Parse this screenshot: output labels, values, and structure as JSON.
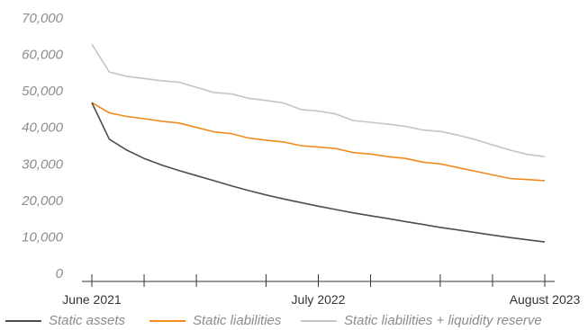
{
  "chart_data": {
    "type": "line",
    "title": "",
    "xlabel": "",
    "ylabel": "",
    "ylim": [
      0,
      70000
    ],
    "yticks": [
      "0",
      "10,000",
      "20,000",
      "30,000",
      "40,000",
      "50,000",
      "60,000",
      "70,000"
    ],
    "ytick_values": [
      0,
      10000,
      20000,
      30000,
      40000,
      50000,
      60000,
      70000
    ],
    "x_count": 27,
    "x_tick_labels": [
      {
        "index": 0,
        "label": "June 2021"
      },
      {
        "index": 13,
        "label": "July 2022"
      },
      {
        "index": 26,
        "label": "August 2023"
      }
    ],
    "x_minor_ticks": [
      0,
      3,
      6,
      10,
      13,
      16,
      20,
      23,
      26
    ],
    "grid": false,
    "legend_position": "bottom",
    "series": [
      {
        "name": "Static assets",
        "color": "#4d4d4d",
        "values": [
          46800,
          36800,
          33800,
          31500,
          29700,
          28200,
          26800,
          25400,
          24000,
          22700,
          21500,
          20400,
          19400,
          18400,
          17500,
          16600,
          15800,
          15000,
          14200,
          13400,
          12600,
          11900,
          11200,
          10500,
          9800,
          9200,
          8600
        ]
      },
      {
        "name": "Static liabilities",
        "color": "#f08a1c",
        "values": [
          46800,
          44000,
          43000,
          42400,
          41700,
          41200,
          40000,
          38800,
          38300,
          37100,
          36500,
          36000,
          35000,
          34600,
          34200,
          33100,
          32700,
          32000,
          31500,
          30500,
          30000,
          29000,
          28000,
          27000,
          26000,
          25700,
          25400
        ]
      },
      {
        "name": "Static liabilities + liquidity reserve",
        "color": "#c4c4c4",
        "values": [
          62800,
          55200,
          54000,
          53400,
          52800,
          52400,
          51000,
          49600,
          49200,
          48000,
          47400,
          46700,
          44900,
          44500,
          43700,
          41900,
          41400,
          40900,
          40300,
          39300,
          38900,
          37900,
          36700,
          35200,
          33800,
          32600,
          32000
        ]
      }
    ]
  }
}
